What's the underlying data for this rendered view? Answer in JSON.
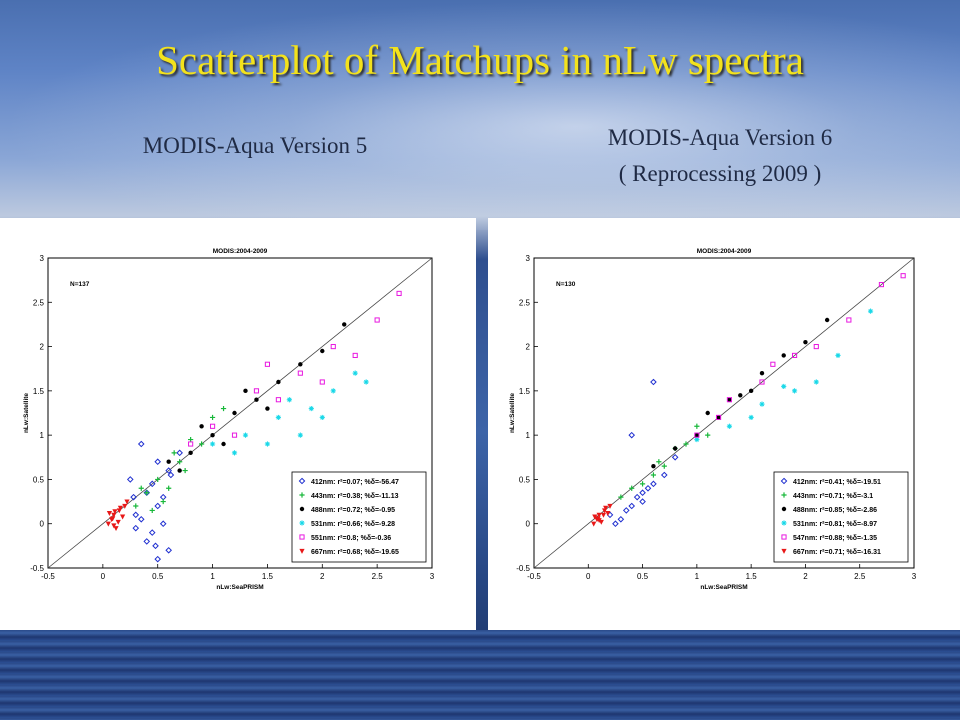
{
  "slide": {
    "title": "Scatterplot of Matchups in nLw spectra",
    "subtitle_left": "MODIS-Aqua Version 5",
    "subtitle_right_line1": "MODIS-Aqua Version 6",
    "subtitle_right_line2": "( Reprocessing 2009 )",
    "colors": {
      "title": "#f3e21c",
      "background": "#3d64a8"
    }
  },
  "chart_data": [
    {
      "type": "scatter",
      "title": "MODIS:2004-2009",
      "xlabel": "nLw:SeaPRISM",
      "ylabel": "nLw:Satellite",
      "xlim": [
        -0.5,
        3
      ],
      "ylim": [
        -0.5,
        3
      ],
      "xticks": [
        "-0.5",
        "0",
        "0.5",
        "1",
        "1.5",
        "2",
        "2.5",
        "3"
      ],
      "yticks": [
        "-0.5",
        "0",
        "0.5",
        "1",
        "1.5",
        "2",
        "2.5",
        "3"
      ],
      "annotation": "N=137",
      "one_to_one_line": true,
      "legend_position": "bottom-right",
      "series": [
        {
          "name": "412nm: r²=0.07; %δ=-56.47",
          "color": "#1f2fd0",
          "marker": "diamond",
          "x": [
            0.3,
            0.4,
            0.5,
            0.55,
            0.6,
            0.35,
            0.45,
            0.5,
            0.25,
            0.7,
            0.4,
            0.6,
            0.5,
            0.3,
            0.45,
            0.55,
            0.35,
            0.62,
            0.48,
            0.28
          ],
          "y": [
            0.1,
            -0.2,
            -0.4,
            0.3,
            0.6,
            0.05,
            -0.1,
            0.2,
            0.5,
            0.8,
            0.35,
            -0.3,
            0.7,
            -0.05,
            0.45,
            0.0,
            0.9,
            0.55,
            -0.25,
            0.3
          ]
        },
        {
          "name": "443nm: r²=0.38; %δ=-11.13",
          "color": "#18b83a",
          "marker": "plus",
          "x": [
            0.3,
            0.5,
            0.7,
            0.9,
            0.6,
            0.4,
            0.8,
            1.0,
            0.55,
            0.75,
            0.45,
            0.65,
            1.1,
            0.35
          ],
          "y": [
            0.2,
            0.5,
            0.7,
            0.9,
            0.4,
            0.35,
            0.95,
            1.2,
            0.25,
            0.6,
            0.15,
            0.8,
            1.3,
            0.4
          ]
        },
        {
          "name": "488nm: r²=0.72; %δ=-0.95",
          "color": "#000000",
          "marker": "dot",
          "x": [
            0.6,
            0.8,
            1.0,
            1.2,
            1.4,
            1.6,
            1.8,
            2.0,
            2.2,
            0.9,
            1.1,
            1.3,
            1.5,
            0.7
          ],
          "y": [
            0.7,
            0.8,
            1.0,
            1.25,
            1.4,
            1.6,
            1.8,
            1.95,
            2.25,
            1.1,
            0.9,
            1.5,
            1.3,
            0.6
          ]
        },
        {
          "name": "531nm: r²=0.66; %δ=-9.28",
          "color": "#18d8e8",
          "marker": "star",
          "x": [
            1.0,
            1.3,
            1.6,
            1.9,
            2.1,
            2.3,
            1.5,
            1.8,
            1.2,
            2.0,
            2.4,
            1.7
          ],
          "y": [
            0.9,
            1.0,
            1.2,
            1.3,
            1.5,
            1.7,
            0.9,
            1.0,
            0.8,
            1.2,
            1.6,
            1.4
          ]
        },
        {
          "name": "551nm: r²=0.8; %δ=-0.36",
          "color": "#e818e0",
          "marker": "square",
          "x": [
            1.0,
            1.4,
            1.8,
            2.1,
            2.5,
            2.7,
            1.2,
            1.6,
            2.3,
            0.8,
            1.5,
            2.0
          ],
          "y": [
            1.1,
            1.5,
            1.7,
            2.0,
            2.3,
            2.6,
            1.0,
            1.4,
            1.9,
            0.9,
            1.8,
            1.6
          ]
        },
        {
          "name": "667nm: r²=0.68; %δ=-19.65",
          "color": "#e81818",
          "marker": "triangle",
          "x": [
            0.05,
            0.08,
            0.1,
            0.12,
            0.15,
            0.18,
            0.2,
            0.06,
            0.1,
            0.14,
            0.09,
            0.16,
            0.22,
            0.11
          ],
          "y": [
            0.0,
            0.05,
            0.1,
            -0.05,
            0.15,
            0.08,
            0.2,
            0.12,
            -0.02,
            0.02,
            0.06,
            0.18,
            0.25,
            0.14
          ]
        }
      ]
    },
    {
      "type": "scatter",
      "title": "MODIS:2004-2009",
      "xlabel": "nLw:SeaPRISM",
      "ylabel": "nLw:Satellite",
      "xlim": [
        -0.5,
        3
      ],
      "ylim": [
        -0.5,
        3
      ],
      "xticks": [
        "-0.5",
        "0",
        "0.5",
        "1",
        "1.5",
        "2",
        "2.5",
        "3"
      ],
      "yticks": [
        "-0.5",
        "0",
        "0.5",
        "1",
        "1.5",
        "2",
        "2.5",
        "3"
      ],
      "annotation": "N=130",
      "one_to_one_line": true,
      "legend_position": "bottom-right",
      "series": [
        {
          "name": "412nm: r²=0.41; %δ=-19.51",
          "color": "#1f2fd0",
          "marker": "diamond",
          "x": [
            0.2,
            0.3,
            0.4,
            0.5,
            0.6,
            0.35,
            0.45,
            0.55,
            0.25,
            0.7,
            0.8,
            0.4,
            0.6,
            0.5
          ],
          "y": [
            0.1,
            0.05,
            0.2,
            0.35,
            0.45,
            0.15,
            0.3,
            0.4,
            0.0,
            0.55,
            0.75,
            1.0,
            1.6,
            0.25
          ]
        },
        {
          "name": "443nm: r²=0.71; %δ=-3.1",
          "color": "#18b83a",
          "marker": "plus",
          "x": [
            0.3,
            0.5,
            0.7,
            0.9,
            1.1,
            0.6,
            0.8,
            0.4,
            1.0,
            0.65
          ],
          "y": [
            0.3,
            0.45,
            0.65,
            0.9,
            1.0,
            0.55,
            0.85,
            0.4,
            1.1,
            0.7
          ]
        },
        {
          "name": "488nm: r²=0.85; %δ=-2.86",
          "color": "#000000",
          "marker": "dot",
          "x": [
            0.6,
            0.8,
            1.0,
            1.2,
            1.4,
            1.6,
            1.8,
            2.0,
            2.2,
            1.1,
            1.3,
            1.5
          ],
          "y": [
            0.65,
            0.85,
            1.0,
            1.2,
            1.45,
            1.7,
            1.9,
            2.05,
            2.3,
            1.25,
            1.4,
            1.5
          ]
        },
        {
          "name": "531nm: r²=0.81; %δ=-8.97",
          "color": "#18d8e8",
          "marker": "star",
          "x": [
            1.0,
            1.3,
            1.6,
            1.9,
            2.1,
            2.3,
            1.5,
            1.8,
            2.6
          ],
          "y": [
            0.95,
            1.1,
            1.35,
            1.5,
            1.6,
            1.9,
            1.2,
            1.55,
            2.4
          ]
        },
        {
          "name": "547nm: r²=0.88; %δ=-1.35",
          "color": "#e818e0",
          "marker": "square",
          "x": [
            1.0,
            1.3,
            1.6,
            1.9,
            2.1,
            2.4,
            2.7,
            1.2,
            1.7,
            2.9
          ],
          "y": [
            1.0,
            1.4,
            1.6,
            1.9,
            2.0,
            2.3,
            2.7,
            1.2,
            1.8,
            2.8
          ]
        },
        {
          "name": "667nm: r²=0.71; %δ=-16.31",
          "color": "#e81818",
          "marker": "triangle",
          "x": [
            0.05,
            0.08,
            0.1,
            0.12,
            0.15,
            0.18,
            0.2,
            0.06,
            0.1,
            0.14,
            0.09,
            0.16
          ],
          "y": [
            0.0,
            0.05,
            0.1,
            0.02,
            0.15,
            0.12,
            0.2,
            0.08,
            0.04,
            0.1,
            0.06,
            0.18
          ]
        }
      ]
    }
  ]
}
